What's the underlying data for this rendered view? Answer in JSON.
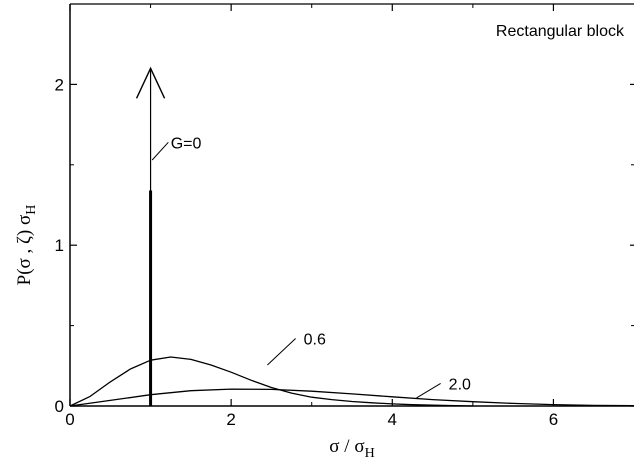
{
  "chart_data": {
    "type": "line",
    "title": "Rectangular block",
    "xlabel": "σ / σ",
    "xlabel_sub": "H",
    "ylabel": "P(σ , ζ) σ",
    "ylabel_sub": "H",
    "xlim": [
      0,
      7
    ],
    "ylim": [
      0,
      2.5
    ],
    "x_ticks": [
      0,
      2,
      4,
      6
    ],
    "y_ticks": [
      0,
      1,
      2
    ],
    "grid": false,
    "series": [
      {
        "name": "G=0",
        "kind": "delta",
        "x": [
          1,
          1
        ],
        "y": [
          0,
          2.1
        ]
      },
      {
        "name": "0.6",
        "x": [
          0,
          0.25,
          0.5,
          0.75,
          1.0,
          1.25,
          1.5,
          1.75,
          2.0,
          2.25,
          2.5,
          2.75,
          3.0,
          3.25,
          3.5,
          3.75,
          4.0,
          4.25,
          4.5,
          5.0
        ],
        "y": [
          0,
          0.06,
          0.15,
          0.23,
          0.285,
          0.305,
          0.29,
          0.255,
          0.21,
          0.16,
          0.115,
          0.08,
          0.055,
          0.04,
          0.028,
          0.02,
          0.013,
          0.008,
          0.005,
          0.0
        ]
      },
      {
        "name": "2.0",
        "x": [
          0,
          0.5,
          1.0,
          1.5,
          2.0,
          2.5,
          3.0,
          3.5,
          4.0,
          4.5,
          5.0,
          5.5,
          6.0,
          6.5,
          7.0
        ],
        "y": [
          0,
          0.035,
          0.07,
          0.095,
          0.105,
          0.103,
          0.092,
          0.075,
          0.057,
          0.04,
          0.027,
          0.016,
          0.009,
          0.004,
          0.002
        ]
      }
    ],
    "annotations": [
      {
        "text": "G=0",
        "target": "G=0"
      },
      {
        "text": "0.6",
        "target": "0.6"
      },
      {
        "text": "2.0",
        "target": "2.0"
      }
    ]
  }
}
